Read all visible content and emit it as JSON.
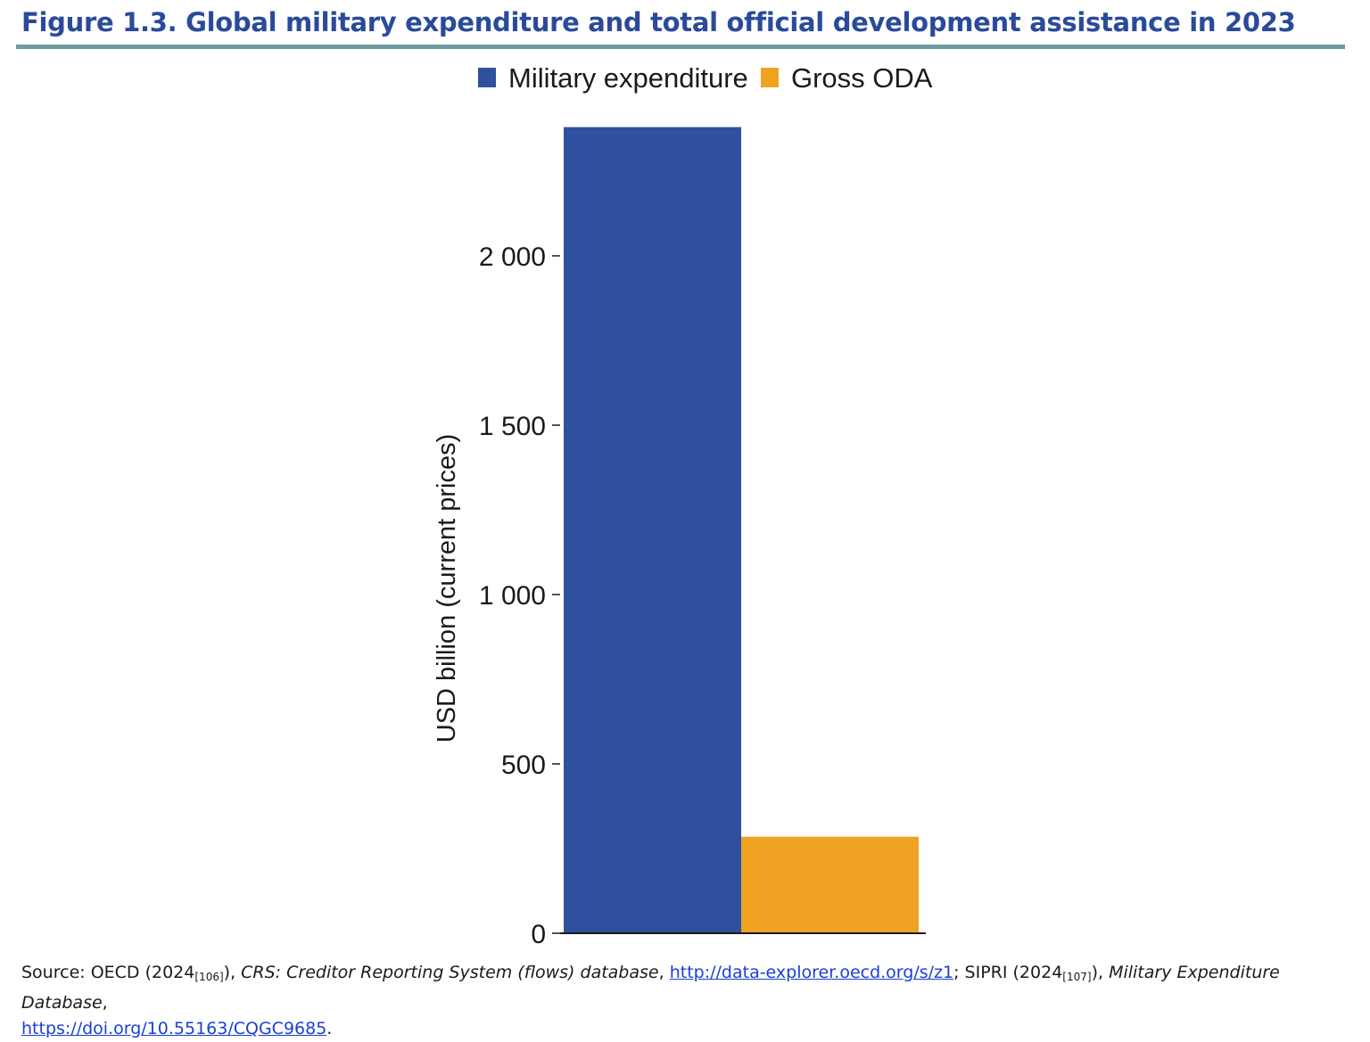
{
  "figure": {
    "title": "Figure 1.3. Global military expenditure and total official development assistance in 2023"
  },
  "chart_data": {
    "type": "bar",
    "categories": [
      ""
    ],
    "series": [
      {
        "name": "Military expenditure",
        "values": [
          2380
        ],
        "color": "#2f4f9f"
      },
      {
        "name": "Gross ODA",
        "values": [
          285
        ],
        "color": "#efa222"
      }
    ],
    "ylabel": "USD billion (current prices)",
    "ylim": [
      0,
      2400
    ],
    "yticks": [
      0,
      500,
      1000,
      1500,
      2000
    ],
    "ytick_labels": [
      "0",
      "500",
      "1 000",
      "1 500",
      "2 000"
    ],
    "legend_position": "top",
    "grid": false
  },
  "source": {
    "prefix": "Source: OECD (2024",
    "ref1": "[106]",
    "part2": "), ",
    "db1": "CRS: Creditor Reporting System (flows) database",
    "comma1": ", ",
    "link1": "http://data-explorer.oecd.org/s/z1",
    "part3": "; SIPRI (2024",
    "ref2": "[107]",
    "part4": "), ",
    "db2": "Military Expenditure Database",
    "comma2": ", ",
    "link2": "https://doi.org/10.55163/CQGC9685",
    "end": "."
  }
}
